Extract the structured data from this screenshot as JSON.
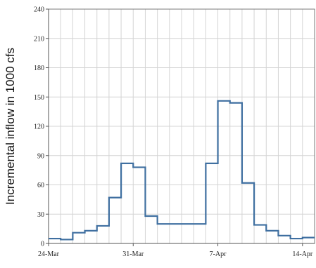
{
  "chart_data": {
    "type": "line",
    "step": true,
    "title": "",
    "xlabel": "",
    "ylabel": "Incremental inflow in 1000 cfs",
    "ylim": [
      0,
      240
    ],
    "yticks": [
      0,
      30,
      60,
      90,
      120,
      150,
      180,
      210,
      240
    ],
    "ytick_labels": [
      "0",
      "30",
      "60",
      "90",
      "120",
      "150",
      "180",
      "210",
      "240"
    ],
    "xlim": [
      "2024-03-24",
      "2024-04-15"
    ],
    "xticks": [
      {
        "date": "2024-03-24",
        "label": "24-Mar"
      },
      {
        "date": "2024-03-31",
        "label": "31-Mar"
      },
      {
        "date": "2024-04-07",
        "label": "7-Apr"
      },
      {
        "date": "2024-04-14",
        "label": "14-Apr"
      }
    ],
    "grid": true,
    "series": [
      {
        "color": "#3f6fa0",
        "x": [
          "2024-03-24",
          "2024-03-25",
          "2024-03-26",
          "2024-03-27",
          "2024-03-28",
          "2024-03-29",
          "2024-03-30",
          "2024-03-31",
          "2024-04-01",
          "2024-04-02",
          "2024-04-03",
          "2024-04-04",
          "2024-04-05",
          "2024-04-06",
          "2024-04-07",
          "2024-04-08",
          "2024-04-09",
          "2024-04-10",
          "2024-04-11",
          "2024-04-12",
          "2024-04-13",
          "2024-04-14"
        ],
        "values": [
          5,
          4,
          11,
          13,
          18,
          47,
          82,
          78,
          28,
          20,
          20,
          20,
          20,
          82,
          146,
          144,
          62,
          19,
          13,
          8,
          5,
          6
        ]
      }
    ]
  }
}
